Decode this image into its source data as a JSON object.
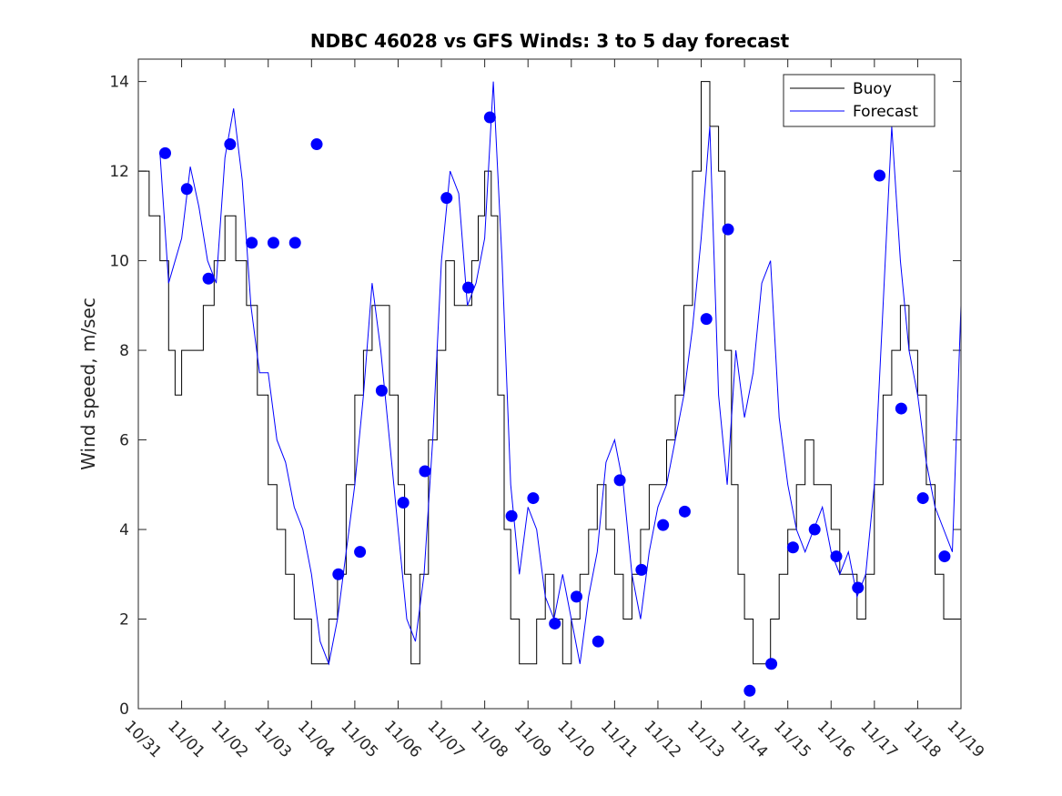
{
  "chart_data": {
    "type": "line",
    "title": "NDBC 46028 vs GFS Winds: 3 to 5 day forecast",
    "xlabel": "",
    "ylabel": "Wind speed, m/sec",
    "xlim": [
      0,
      19
    ],
    "ylim": [
      0,
      14.5
    ],
    "yticks": [
      0,
      2,
      4,
      6,
      8,
      10,
      12,
      14
    ],
    "xtick_values": [
      0,
      1,
      2,
      3,
      4,
      5,
      6,
      7,
      8,
      9,
      10,
      11,
      12,
      13,
      14,
      15,
      16,
      17,
      18,
      19
    ],
    "xtick_labels": [
      "10/31",
      "11/01",
      "11/02",
      "11/03",
      "11/04",
      "11/05",
      "11/06",
      "11/07",
      "11/08",
      "11/09",
      "11/10",
      "11/11",
      "11/12",
      "11/13",
      "11/14",
      "11/15",
      "11/16",
      "11/17",
      "11/18",
      "11/19"
    ],
    "legend": {
      "location": "top-right",
      "entries": [
        "Buoy",
        "Forecast"
      ]
    },
    "colors": {
      "buoy": "#000000",
      "forecast": "#0000ff",
      "marker": "#0000ff"
    },
    "series": [
      {
        "name": "Buoy",
        "x": [
          0.0,
          0.25,
          0.5,
          0.7,
          0.85,
          1.0,
          1.25,
          1.5,
          1.75,
          2.0,
          2.25,
          2.5,
          2.75,
          3.0,
          3.2,
          3.4,
          3.6,
          3.8,
          4.0,
          4.2,
          4.4,
          4.6,
          4.8,
          5.0,
          5.2,
          5.4,
          5.6,
          5.8,
          6.0,
          6.15,
          6.3,
          6.5,
          6.7,
          6.9,
          7.1,
          7.3,
          7.5,
          7.7,
          7.85,
          8.0,
          8.15,
          8.3,
          8.45,
          8.6,
          8.8,
          9.0,
          9.2,
          9.4,
          9.6,
          9.8,
          10.0,
          10.2,
          10.4,
          10.6,
          10.8,
          11.0,
          11.2,
          11.4,
          11.6,
          11.8,
          12.0,
          12.2,
          12.4,
          12.6,
          12.8,
          13.0,
          13.2,
          13.4,
          13.55,
          13.7,
          13.85,
          14.0,
          14.2,
          14.4,
          14.6,
          14.8,
          15.0,
          15.2,
          15.4,
          15.6,
          15.8,
          16.0,
          16.2,
          16.4,
          16.6,
          16.8,
          17.0,
          17.2,
          17.4,
          17.6,
          17.8,
          18.0,
          18.2,
          18.4,
          18.6,
          18.8,
          19.0
        ],
        "y": [
          12,
          11,
          10,
          8,
          7,
          8,
          8,
          9,
          10,
          11,
          10,
          9,
          7,
          5,
          4,
          3,
          2,
          2,
          1,
          1,
          2,
          3,
          5,
          7,
          8,
          9,
          9,
          7,
          5,
          3,
          1,
          3,
          6,
          8,
          10,
          9,
          9,
          10,
          11,
          12,
          11,
          7,
          4,
          2,
          1,
          1,
          2,
          3,
          2,
          1,
          2,
          3,
          4,
          5,
          4,
          3,
          2,
          3,
          4,
          5,
          5,
          6,
          7,
          9,
          12,
          14,
          13,
          12,
          8,
          5,
          3,
          2,
          1,
          1,
          2,
          3,
          4,
          5,
          6,
          5,
          5,
          4,
          3,
          3,
          2,
          3,
          5,
          7,
          8,
          9,
          8,
          7,
          5,
          3,
          2,
          2,
          5
        ]
      },
      {
        "name": "Forecast",
        "x": [
          0.5,
          0.7,
          1.0,
          1.2,
          1.4,
          1.6,
          1.8,
          2.0,
          2.2,
          2.4,
          2.6,
          2.8,
          3.0,
          3.2,
          3.4,
          3.6,
          3.8,
          4.0,
          4.2,
          4.4,
          4.6,
          4.8,
          5.0,
          5.2,
          5.4,
          5.6,
          5.8,
          6.0,
          6.2,
          6.4,
          6.6,
          6.8,
          7.0,
          7.2,
          7.4,
          7.6,
          7.8,
          8.0,
          8.2,
          8.4,
          8.6,
          8.8,
          9.0,
          9.2,
          9.4,
          9.6,
          9.8,
          10.0,
          10.2,
          10.4,
          10.6,
          10.8,
          11.0,
          11.2,
          11.4,
          11.6,
          11.8,
          12.0,
          12.2,
          12.4,
          12.6,
          12.8,
          13.0,
          13.2,
          13.4,
          13.6,
          13.8,
          14.0,
          14.2,
          14.4,
          14.6,
          14.8,
          15.0,
          15.2,
          15.4,
          15.6,
          15.8,
          16.0,
          16.2,
          16.4,
          16.6,
          16.8,
          17.0,
          17.2,
          17.4,
          17.6,
          17.8,
          18.0,
          18.2,
          18.4,
          18.6,
          18.8,
          19.0
        ],
        "y": [
          12.4,
          9.5,
          10.5,
          12.1,
          11.2,
          10.0,
          9.5,
          12.3,
          13.4,
          11.8,
          9.0,
          7.5,
          7.5,
          6.0,
          5.5,
          4.5,
          4.0,
          3.0,
          1.5,
          1.0,
          2.0,
          3.5,
          5.0,
          7.0,
          9.5,
          8.0,
          6.0,
          4.0,
          2.0,
          1.5,
          3.0,
          6.0,
          10.0,
          12.0,
          11.5,
          9.0,
          9.5,
          10.5,
          14.0,
          10.0,
          5.0,
          3.0,
          4.5,
          4.0,
          2.5,
          2.0,
          3.0,
          2.0,
          1.0,
          2.5,
          3.5,
          5.5,
          6.0,
          5.0,
          3.0,
          2.0,
          3.5,
          4.5,
          5.0,
          6.0,
          7.0,
          8.5,
          10.5,
          13.0,
          7.0,
          5.0,
          8.0,
          6.5,
          7.5,
          9.5,
          10.0,
          6.5,
          5.0,
          4.0,
          3.5,
          4.0,
          4.5,
          3.5,
          3.0,
          3.5,
          2.5,
          3.0,
          5.0,
          9.0,
          13.0,
          10.0,
          8.0,
          7.0,
          5.5,
          4.5,
          4.0,
          3.5,
          9.0
        ]
      }
    ],
    "markers": {
      "name": "Forecast points",
      "x": [
        0.62,
        1.12,
        1.62,
        2.12,
        2.62,
        3.12,
        3.62,
        4.12,
        4.62,
        5.12,
        5.62,
        6.12,
        6.62,
        7.12,
        7.62,
        8.12,
        8.62,
        9.12,
        9.62,
        10.12,
        10.62,
        11.12,
        11.62,
        12.12,
        12.62,
        13.12,
        13.62,
        14.12,
        14.62,
        15.12,
        15.62,
        16.12,
        16.62,
        17.12,
        17.62,
        18.12,
        18.62
      ],
      "y": [
        12.4,
        11.6,
        9.6,
        12.6,
        10.4,
        10.4,
        10.4,
        12.6,
        3.0,
        3.5,
        7.1,
        4.6,
        5.3,
        11.4,
        9.4,
        13.2,
        4.3,
        4.7,
        1.9,
        2.5,
        1.5,
        5.1,
        3.1,
        4.1,
        4.4,
        8.7,
        10.7,
        0.4,
        1.0,
        3.6,
        4.0,
        3.4,
        2.7,
        11.9,
        6.7,
        4.7,
        3.4
      ]
    }
  }
}
